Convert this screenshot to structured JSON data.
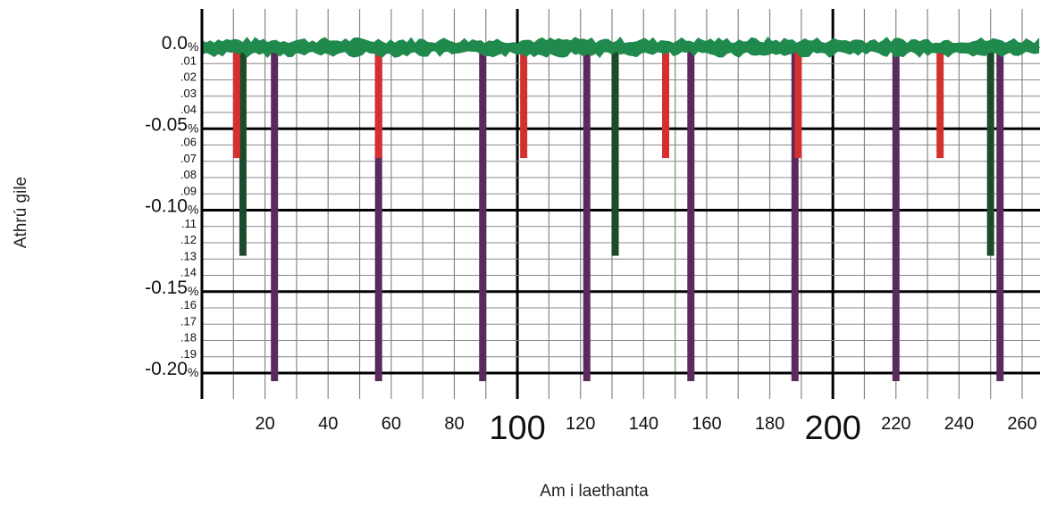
{
  "chart_data": {
    "type": "line",
    "xlabel": "Am i laethanta",
    "ylabel": "Athrú gile",
    "xlim": [
      0,
      270
    ],
    "ylim": [
      -0.21,
      0.005
    ],
    "x_ticks": [
      {
        "value": 20,
        "label": "20",
        "emphasis": false
      },
      {
        "value": 40,
        "label": "40",
        "emphasis": false
      },
      {
        "value": 60,
        "label": "60",
        "emphasis": false
      },
      {
        "value": 80,
        "label": "80",
        "emphasis": false
      },
      {
        "value": 100,
        "label": "100",
        "emphasis": true
      },
      {
        "value": 120,
        "label": "120",
        "emphasis": false
      },
      {
        "value": 140,
        "label": "140",
        "emphasis": false
      },
      {
        "value": 160,
        "label": "160",
        "emphasis": false
      },
      {
        "value": 180,
        "label": "180",
        "emphasis": false
      },
      {
        "value": 200,
        "label": "200",
        "emphasis": true
      },
      {
        "value": 220,
        "label": "220",
        "emphasis": false
      },
      {
        "value": 240,
        "label": "240",
        "emphasis": false
      },
      {
        "value": 260,
        "label": "260",
        "emphasis": false
      }
    ],
    "y_ticks_major": [
      {
        "value": 0.0,
        "label": "0.0",
        "unit": "%"
      },
      {
        "value": -0.05,
        "label": "-0.05",
        "unit": "%"
      },
      {
        "value": -0.1,
        "label": "-0.10",
        "unit": "%"
      },
      {
        "value": -0.15,
        "label": "-0.15",
        "unit": "%"
      },
      {
        "value": -0.2,
        "label": "-0.20",
        "unit": "%"
      }
    ],
    "y_ticks_minor": [
      {
        "value": -0.01,
        "label": ".01"
      },
      {
        "value": -0.02,
        "label": ".02"
      },
      {
        "value": -0.03,
        "label": ".03"
      },
      {
        "value": -0.04,
        "label": ".04"
      },
      {
        "value": -0.06,
        "label": ".06"
      },
      {
        "value": -0.07,
        "label": ".07"
      },
      {
        "value": -0.08,
        "label": ".08"
      },
      {
        "value": -0.09,
        "label": ".09"
      },
      {
        "value": -0.11,
        "label": ".11"
      },
      {
        "value": -0.12,
        "label": ".12"
      },
      {
        "value": -0.13,
        "label": ".13"
      },
      {
        "value": -0.14,
        "label": ".14"
      },
      {
        "value": -0.16,
        "label": ".16"
      },
      {
        "value": -0.17,
        "label": ".17"
      },
      {
        "value": -0.18,
        "label": ".18"
      },
      {
        "value": -0.19,
        "label": ".19"
      }
    ],
    "series": [
      {
        "color": "#d62f2f",
        "transit_depth": -0.068,
        "transits_x": [
          11,
          56,
          102,
          147,
          189,
          234
        ]
      },
      {
        "color": "#1d4a2a",
        "transit_depth": -0.128,
        "transits_x": [
          13,
          131,
          250
        ]
      },
      {
        "color": "#5a2a5f",
        "transit_depth": -0.205,
        "transits_x": [
          23,
          56,
          89,
          122,
          155,
          188,
          220,
          253
        ]
      },
      {
        "color": "#1f8a4c",
        "baseline": 0.0,
        "noise_amplitude": 0.004
      }
    ],
    "grid": true,
    "colors": {
      "axis": "#000000",
      "grid_minor": "#888888",
      "grid_major": "#000000"
    }
  }
}
